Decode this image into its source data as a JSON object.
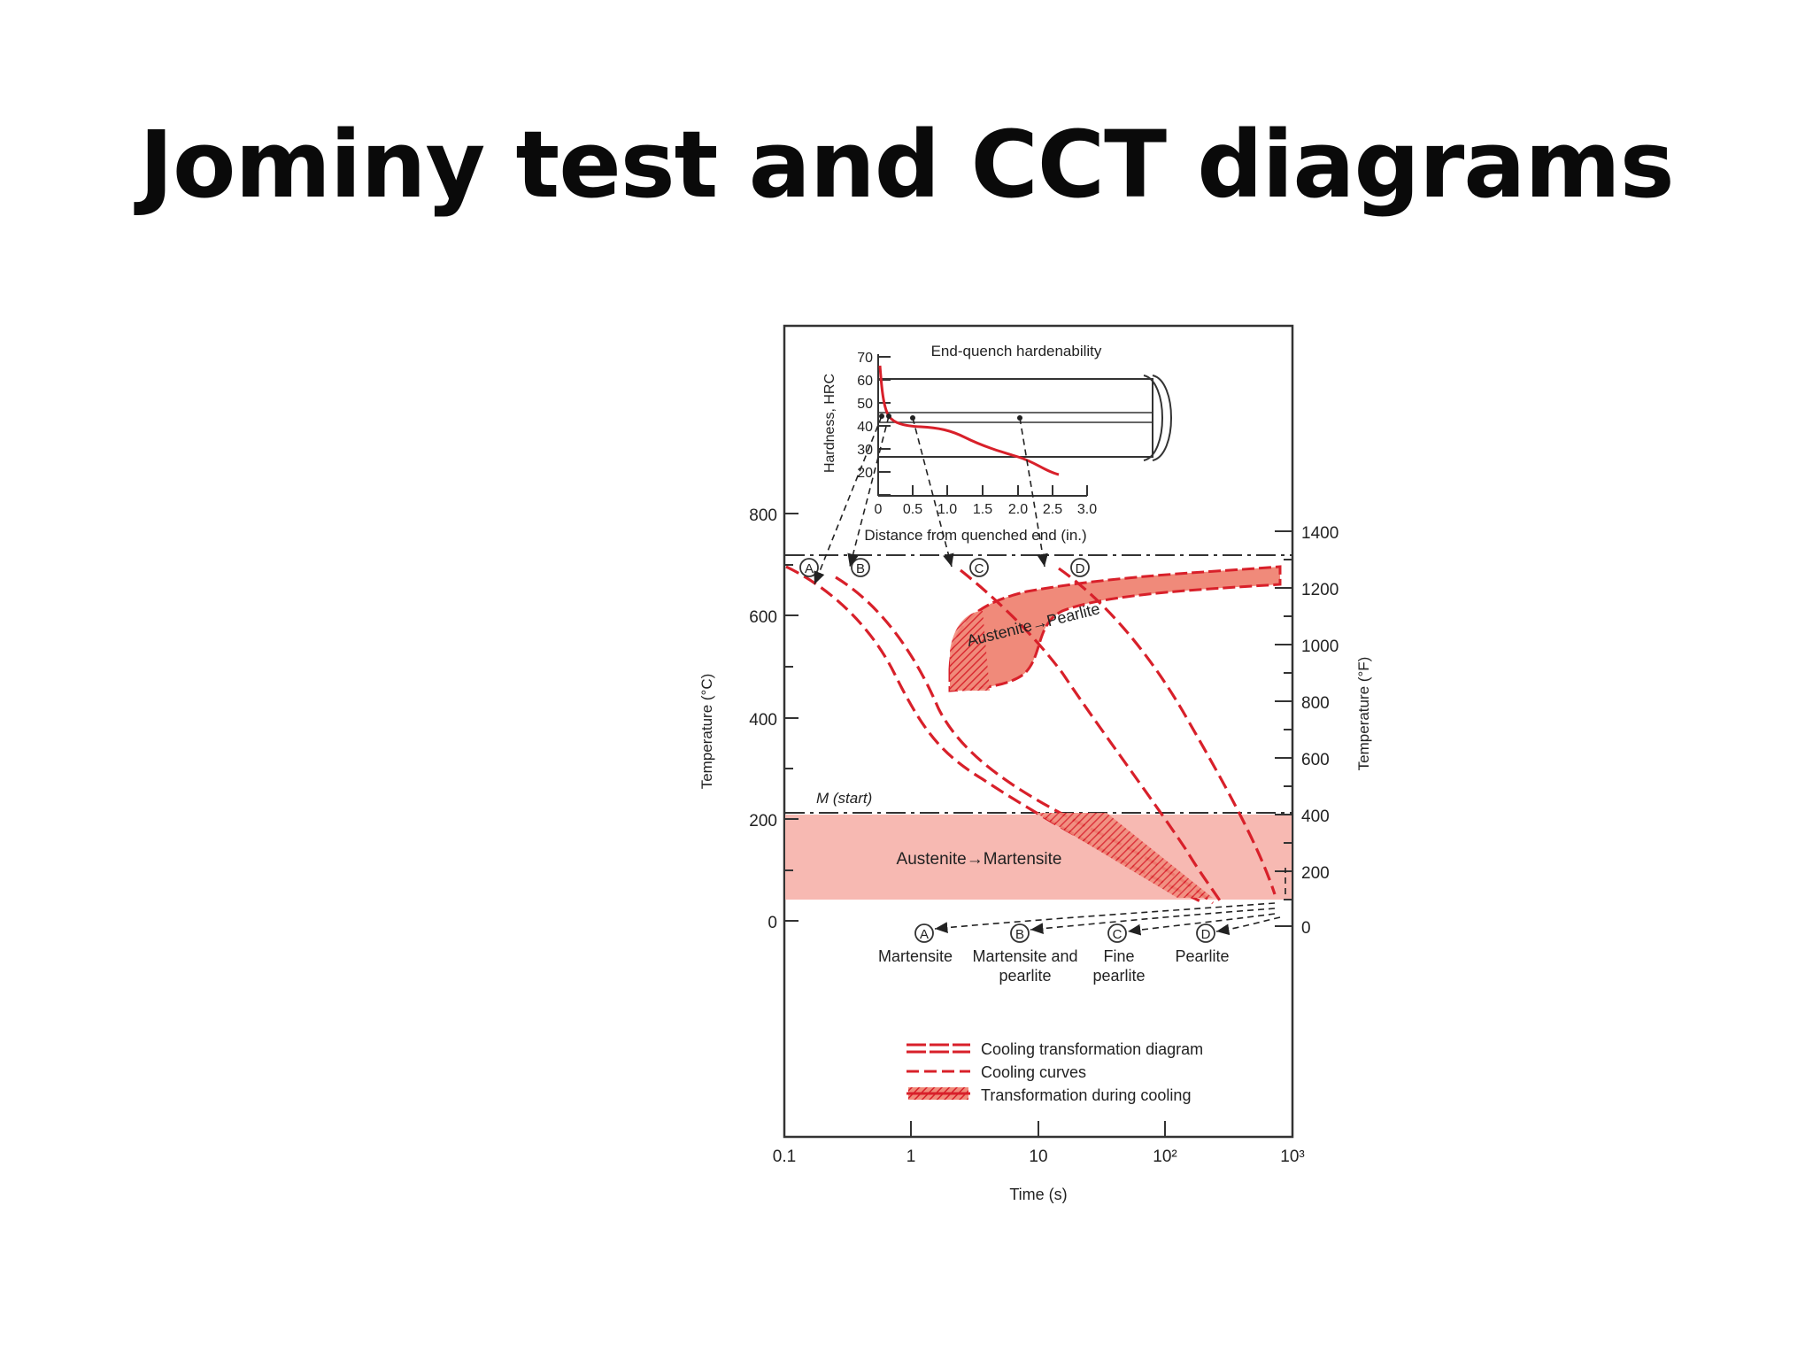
{
  "title": "Jominy test and CCT diagrams",
  "colors": {
    "curve": "#d8202a",
    "band": "#f7b9b2",
    "pearlite_fill": "#f08a7a",
    "ink": "#222222"
  },
  "inset": {
    "title": "End-quench hardenability",
    "ylabel": "Hardness, HRC",
    "xlabel": "Distance from quenched end (in.)",
    "y_ticks": [
      "70",
      "60",
      "50",
      "40",
      "30",
      "20"
    ],
    "x_ticks": [
      "0",
      "0.5",
      "1.0",
      "1.5",
      "2.0",
      "2.5",
      "3.0"
    ],
    "hardness_curve": {
      "x": [
        0,
        0.05,
        0.1,
        0.2,
        0.3,
        0.5,
        0.8,
        1.0,
        1.3,
        1.6,
        2.0,
        2.3,
        2.5
      ],
      "y": [
        65,
        58,
        52,
        47,
        45,
        44,
        43,
        42,
        40,
        36,
        31,
        28,
        27
      ]
    }
  },
  "main": {
    "ylabel_left": "Temperature (°C)",
    "ylabel_right": "Temperature (°F)",
    "xlabel": "Time (s)",
    "y_ticks_c": [
      "800",
      "600",
      "400",
      "200",
      "0"
    ],
    "y_ticks_f": [
      "1400",
      "1200",
      "1000",
      "800",
      "600",
      "400",
      "200",
      "0"
    ],
    "x_ticks": [
      "0.1",
      "1",
      "10",
      "10²",
      "10³"
    ],
    "m_start_label": "M (start)",
    "pearlite_region_label": "Austenite→Pearlite",
    "martensite_region_label": "Austenite→Martensite",
    "curve_markers": [
      "A",
      "B",
      "C",
      "D"
    ],
    "products": [
      {
        "marker": "A",
        "label": "Martensite"
      },
      {
        "marker": "B",
        "label": "Martensite and pearlite"
      },
      {
        "marker": "C",
        "label": "Fine pearlite"
      },
      {
        "marker": "D",
        "label": "Pearlite"
      }
    ],
    "legend": [
      "Cooling transformation diagram",
      "Cooling curves",
      "Transformation during cooling"
    ]
  }
}
